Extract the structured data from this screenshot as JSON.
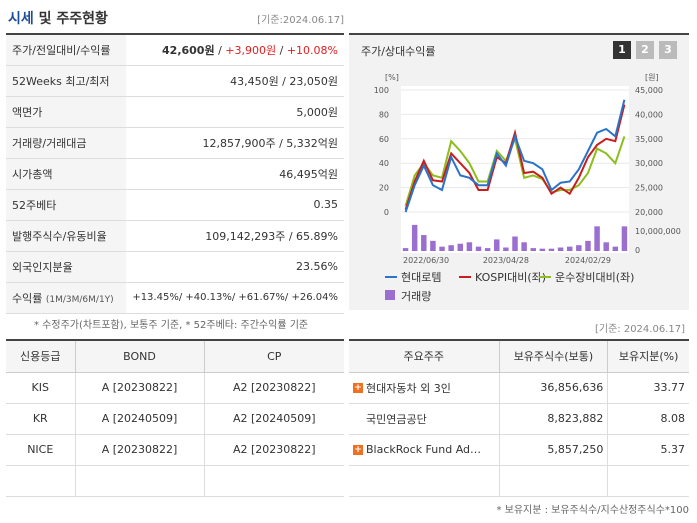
{
  "header": {
    "title1": "시세",
    "title2": " 및 주주현황",
    "date": "[기준:2024.06.17]"
  },
  "info": {
    "price_label": "주가/전일대비/수익률",
    "price": "42,600원",
    "change": "+3,900원",
    "change_pct": "+10.08%",
    "sep": " / ",
    "rows": [
      {
        "label": "52Weeks 최고/최저",
        "value": "43,450원 / 23,050원"
      },
      {
        "label": "액면가",
        "value": "5,000원"
      },
      {
        "label": "거래량/거래대금",
        "value": "12,857,900주 / 5,332억원"
      },
      {
        "label": "시가총액",
        "value": "46,495억원"
      },
      {
        "label": "52주베타",
        "value": "0.35"
      },
      {
        "label": "발행주식수/유동비율",
        "value": "109,142,293주 / 65.89%"
      },
      {
        "label": "외국인지분율",
        "value": "23.56%"
      }
    ],
    "return_label": "수익률",
    "return_sub": "(1M/3M/6M/1Y)",
    "return_value": "+13.45%/ +40.13%/ +61.67%/ +26.04%"
  },
  "note1": "* 수정주가(차트포함), 보통주 기준, * 52주베타: 주간수익률 기준",
  "chart": {
    "title": "주가/상대수익률",
    "tabs": [
      "1",
      "2",
      "3"
    ],
    "left_unit": "[%]",
    "right_unit": "[원]",
    "vol_label": "10,000,000",
    "legend": [
      "현대로템",
      "KOSPI대비(좌)",
      "운수장비대비(좌)",
      "거래량"
    ]
  },
  "chart_data": {
    "type": "line",
    "x_ticks": [
      "2022/06/30",
      "2023/04/28",
      "2024/02/29"
    ],
    "yleft_ticks": [
      "0",
      "20",
      "40",
      "60",
      "80",
      "100"
    ],
    "yright_ticks": [
      "20,000",
      "25,000",
      "30,000",
      "35,000",
      "40,000",
      "45,000"
    ],
    "ylim_left": [
      0,
      100
    ],
    "ylim_right": [
      20000,
      45000
    ],
    "series": [
      {
        "name": "현대로템",
        "color": "#2a73c8",
        "values": [
          0,
          22,
          38,
          22,
          18,
          45,
          30,
          28,
          22,
          22,
          48,
          38,
          62,
          42,
          40,
          35,
          18,
          24,
          25,
          35,
          50,
          65,
          68,
          62,
          92
        ]
      },
      {
        "name": "KOSPI대비(좌)",
        "color": "#c81e1e",
        "values": [
          2,
          25,
          42,
          26,
          25,
          48,
          40,
          32,
          18,
          18,
          45,
          40,
          65,
          32,
          33,
          28,
          15,
          20,
          15,
          28,
          45,
          55,
          60,
          58,
          88
        ]
      },
      {
        "name": "운수장비대비(좌)",
        "color": "#8cbe1e",
        "values": [
          5,
          30,
          40,
          30,
          28,
          58,
          50,
          40,
          25,
          25,
          50,
          42,
          60,
          28,
          30,
          27,
          16,
          18,
          18,
          22,
          32,
          52,
          48,
          40,
          62
        ]
      },
      {
        "name": "거래량",
        "color": "#9b6fcf",
        "values": [
          0.1,
          0.9,
          0.55,
          0.35,
          0.15,
          0.2,
          0.25,
          0.3,
          0.15,
          0.1,
          0.4,
          0.12,
          0.5,
          0.3,
          0.1,
          0.08,
          0.08,
          0.12,
          0.15,
          0.2,
          0.35,
          0.85,
          0.3,
          0.15,
          0.85
        ]
      }
    ]
  },
  "date2": "[기준: 2024.06.17]",
  "credit": {
    "headers": [
      "신용등급",
      "BOND",
      "CP"
    ],
    "rows": [
      [
        "KIS",
        "A  [20230822]",
        "A2  [20230822]"
      ],
      [
        "KR",
        "A  [20240509]",
        "A2  [20240509]"
      ],
      [
        "NICE",
        "A  [20230822]",
        "A2  [20230822]"
      ]
    ]
  },
  "holders": {
    "headers": [
      "주요주주",
      "보유주식수(보통)",
      "보유지분(%)"
    ],
    "rows": [
      {
        "name": "현대자동차 외 3인",
        "shares": "36,856,636",
        "pct": "33.77",
        "plus": true
      },
      {
        "name": "국민연금공단",
        "shares": "8,823,882",
        "pct": "8.08",
        "plus": false
      },
      {
        "name": "BlackRock Fund Advisors",
        "shares": "5,857,250",
        "pct": "5.37",
        "plus": true
      }
    ]
  },
  "note2": "* 보유지분 : 보유주식수/지수산정주식수*100"
}
